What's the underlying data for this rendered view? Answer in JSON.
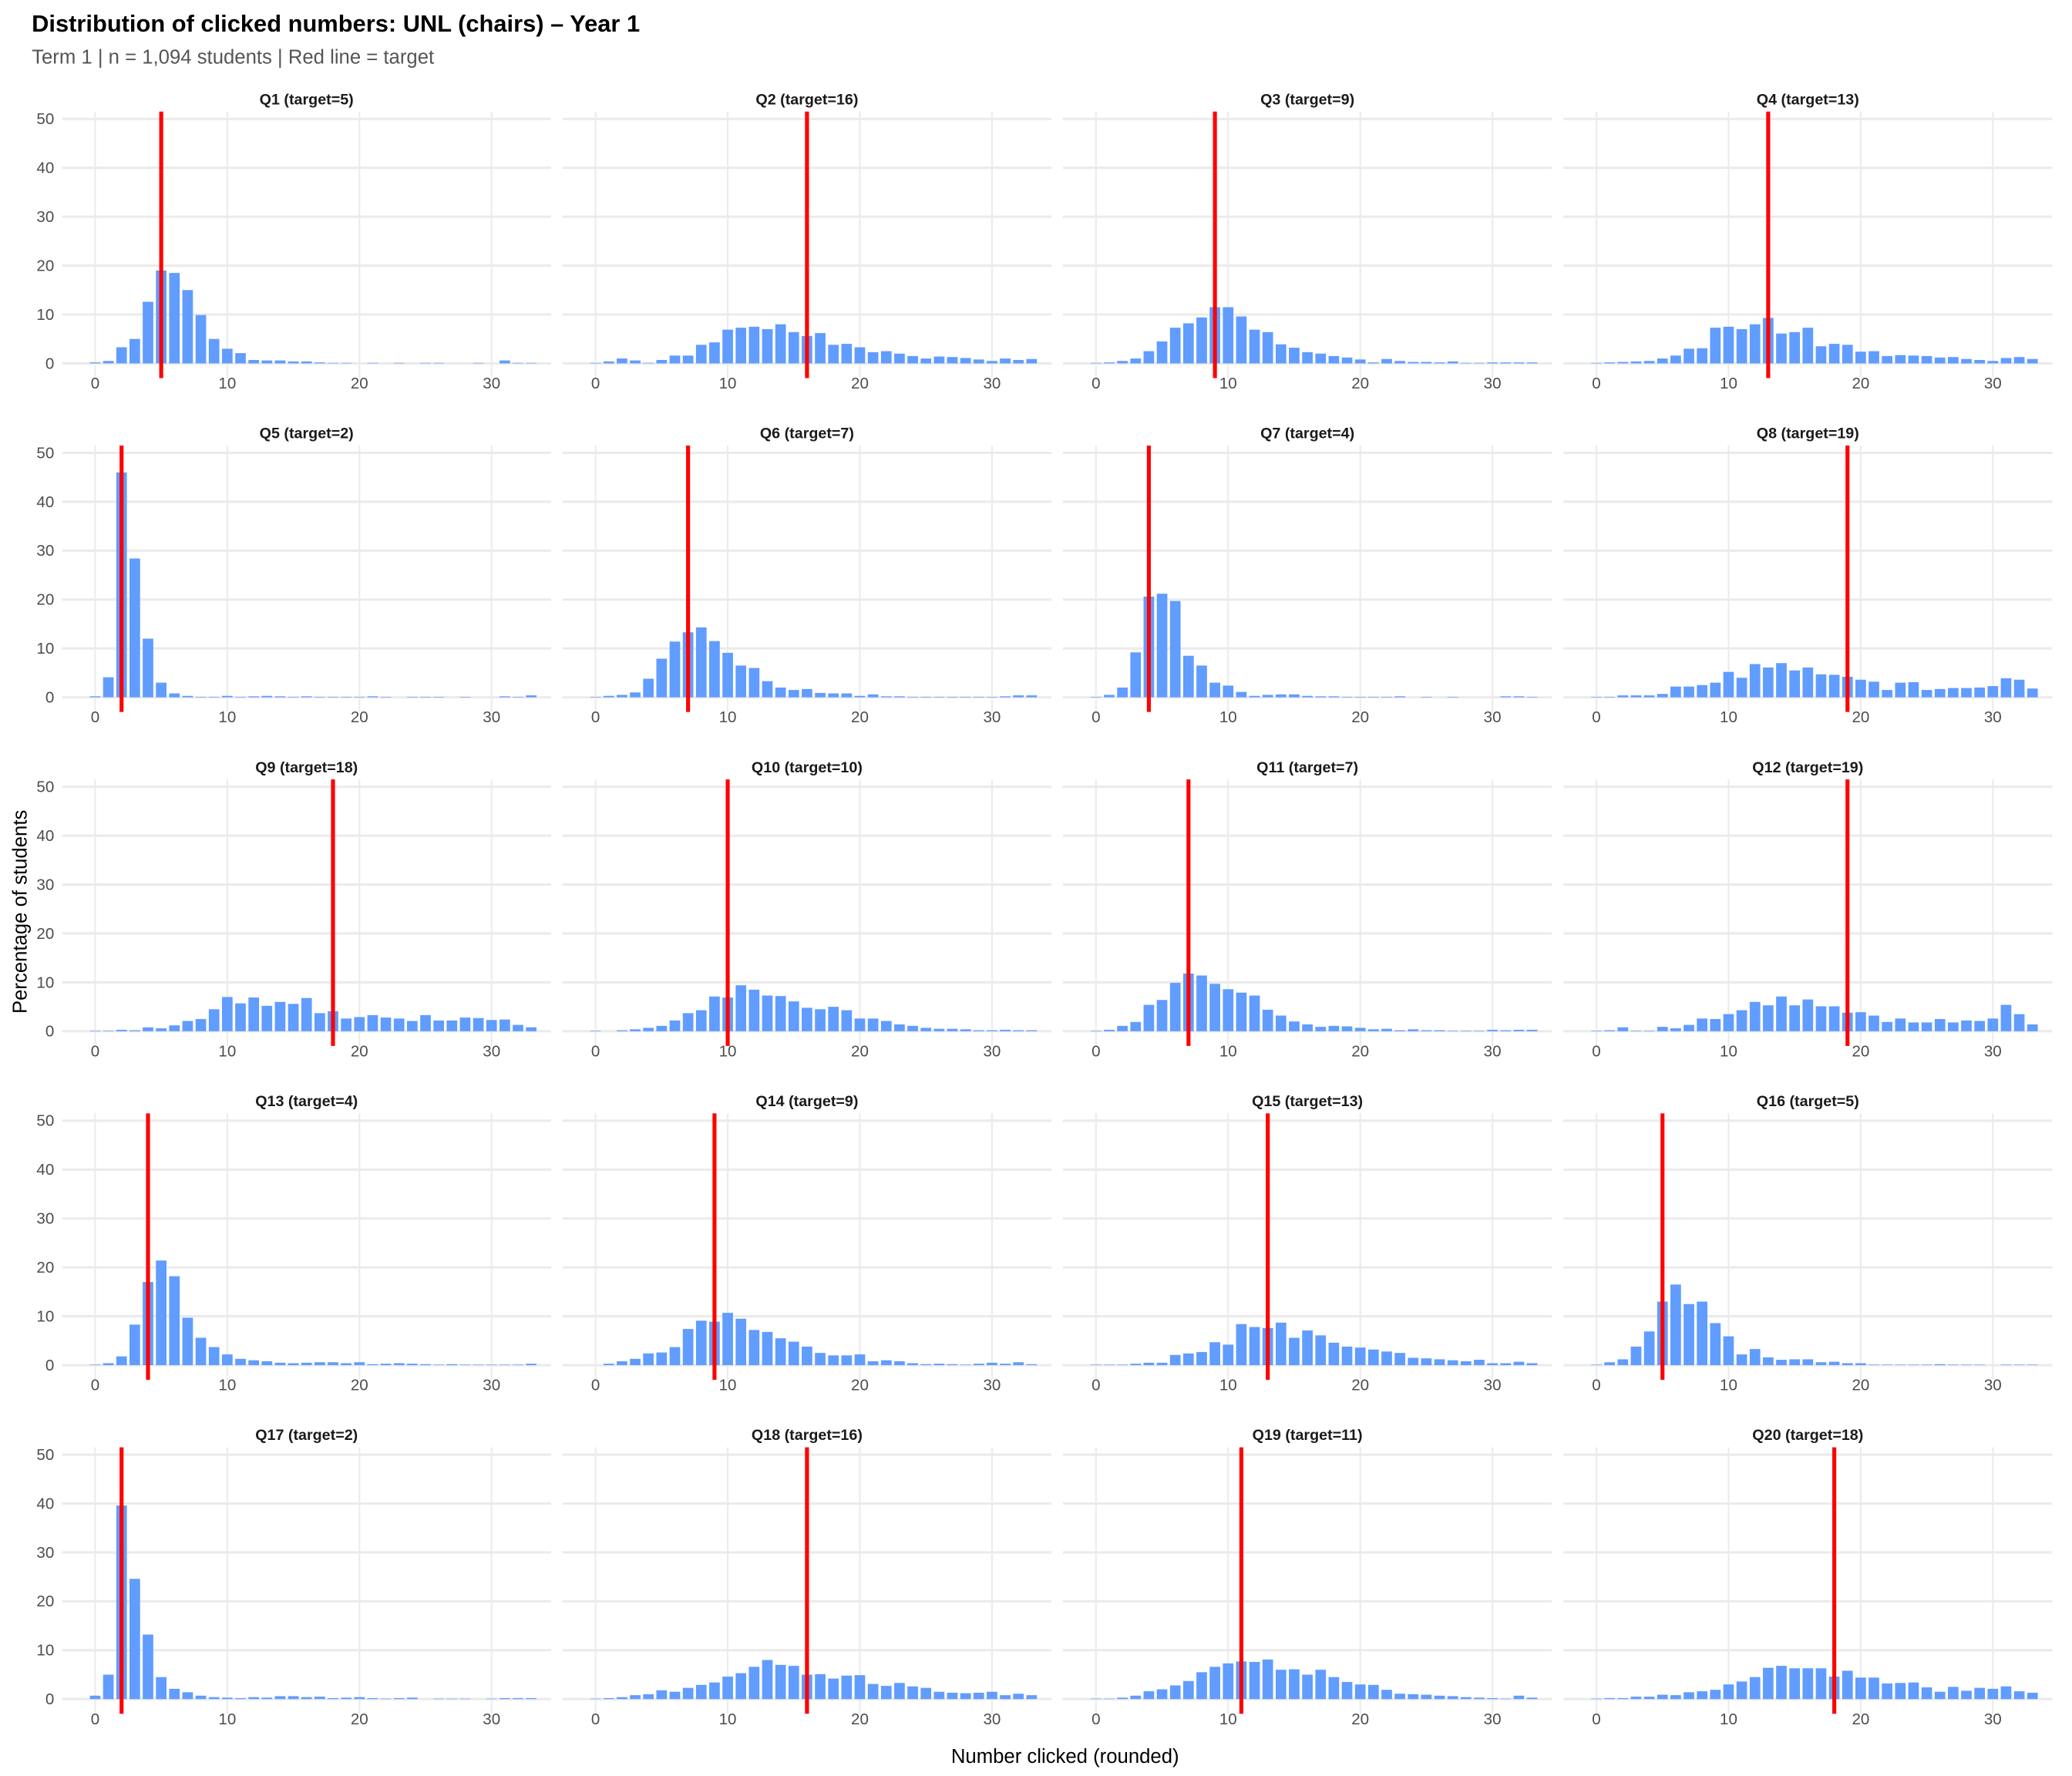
{
  "chart_data": {
    "type": "bar",
    "title": "Distribution of clicked numbers: UNL (chairs) – Year 1",
    "subtitle": "Term 1 | n = 1,094 students | Red line = target",
    "xlabel": "Number clicked (rounded)",
    "ylabel": "Percentage of students",
    "xlim": [
      0,
      33
    ],
    "ylim": [
      0,
      50
    ],
    "xticks": [
      "0",
      "10",
      "20",
      "30"
    ],
    "yticks": [
      "0",
      "10",
      "20",
      "30",
      "40",
      "50"
    ],
    "bar_color": "#619CFF",
    "target_color": "#FF0000",
    "grid": true,
    "panels": [
      {
        "label": "Q1 (target=5)",
        "target": 5,
        "values": [
          0.2,
          0.5,
          3.3,
          5,
          12.6,
          19,
          18.5,
          15,
          9.9,
          5,
          3,
          2.1,
          0.7,
          0.6,
          0.6,
          0.4,
          0.4,
          0.2,
          0.1,
          0.1,
          0,
          0.1,
          0,
          0.1,
          0,
          0.1,
          0.1,
          0,
          0,
          0.1,
          0,
          0.6,
          0.1,
          0.1
        ]
      },
      {
        "label": "Q2 (target=16)",
        "target": 16,
        "values": [
          0.1,
          0.4,
          1,
          0.6,
          0.1,
          0.7,
          1.6,
          1.6,
          3.8,
          4.3,
          6.9,
          7.3,
          7.5,
          7,
          8,
          6.4,
          5.6,
          6.2,
          3.8,
          4,
          3.3,
          2.3,
          2.5,
          2,
          1.5,
          1,
          1.4,
          1.3,
          1.1,
          0.8,
          0.5,
          1,
          0.7,
          0.9
        ]
      },
      {
        "label": "Q3 (target=9)",
        "target": 9,
        "values": [
          0.1,
          0.2,
          0.5,
          1,
          2.5,
          4.5,
          7.3,
          8.2,
          9.4,
          11.5,
          11.5,
          9.6,
          6.9,
          6.4,
          3.9,
          3.2,
          2.3,
          2,
          1.5,
          1.2,
          0.8,
          0.2,
          0.9,
          0.5,
          0.3,
          0.3,
          0.2,
          0.4,
          0.1,
          0.1,
          0.2,
          0.2,
          0.2,
          0.2
        ]
      },
      {
        "label": "Q4 (target=13)",
        "target": 13,
        "values": [
          0.1,
          0.2,
          0.3,
          0.4,
          0.5,
          1,
          1.6,
          3,
          3.1,
          7.3,
          7.5,
          7,
          8,
          9.3,
          6.1,
          6.4,
          7.3,
          3.5,
          4,
          3.8,
          2.4,
          2.5,
          1.5,
          1.7,
          1.6,
          1.5,
          1.2,
          1.3,
          0.9,
          0.7,
          0.5,
          1.1,
          1.3,
          0.9
        ]
      },
      {
        "label": "Q5 (target=2)",
        "target": 2,
        "values": [
          0.2,
          4.1,
          46,
          28.4,
          12,
          3,
          0.8,
          0.3,
          0.1,
          0.1,
          0.3,
          0.1,
          0.2,
          0.3,
          0.2,
          0.1,
          0.2,
          0.1,
          0.1,
          0.1,
          0.1,
          0.2,
          0.1,
          0,
          0.1,
          0.1,
          0.1,
          0,
          0.1,
          0,
          0,
          0.2,
          0.1,
          0.4
        ]
      },
      {
        "label": "Q6 (target=7)",
        "target": 7,
        "values": [
          0.1,
          0.3,
          0.5,
          1,
          3.8,
          7.9,
          11.4,
          13.3,
          14.3,
          11.5,
          9.1,
          6.5,
          6,
          3.3,
          2,
          1.5,
          1.7,
          0.9,
          0.8,
          0.8,
          0.3,
          0.6,
          0.2,
          0.2,
          0.1,
          0.1,
          0.1,
          0.1,
          0.1,
          0.1,
          0.1,
          0.2,
          0.4,
          0.4
        ]
      },
      {
        "label": "Q7 (target=4)",
        "target": 4,
        "values": [
          0.1,
          0.5,
          2,
          9.2,
          20.6,
          21.2,
          19.7,
          8.5,
          6.5,
          3,
          2.4,
          1.1,
          0.3,
          0.5,
          0.6,
          0.6,
          0.3,
          0.2,
          0.2,
          0.1,
          0.1,
          0.1,
          0.1,
          0.2,
          0,
          0.1,
          0,
          0.1,
          0,
          0,
          0,
          0.2,
          0.2,
          0.1
        ]
      },
      {
        "label": "Q8 (target=19)",
        "target": 19,
        "values": [
          0.1,
          0.1,
          0.4,
          0.4,
          0.4,
          0.7,
          2.2,
          2.2,
          2.5,
          3,
          5.2,
          4,
          6.8,
          6.1,
          7,
          5.5,
          6.1,
          4.7,
          4.6,
          4.2,
          3.6,
          3.2,
          1.5,
          3,
          3.1,
          1.5,
          1.7,
          1.9,
          1.9,
          2,
          2.3,
          3.9,
          3.6,
          1.8
        ]
      },
      {
        "label": "Q9 (target=18)",
        "target": 18,
        "values": [
          0.1,
          0.1,
          0.3,
          0.2,
          0.8,
          0.6,
          1.2,
          2.1,
          2.5,
          4.5,
          7,
          5.7,
          6.9,
          5.2,
          6,
          5.6,
          6.8,
          3.7,
          4.1,
          2.6,
          2.9,
          3.3,
          2.8,
          2.6,
          2.1,
          3.3,
          2.2,
          2.2,
          2.8,
          2.7,
          2.3,
          2.4,
          1.3,
          0.8
        ]
      },
      {
        "label": "Q10 (target=10)",
        "target": 10,
        "values": [
          0.1,
          0,
          0.2,
          0.4,
          0.7,
          1.1,
          2.2,
          3.7,
          4.3,
          7.1,
          6.9,
          9.4,
          8.5,
          7.3,
          7.2,
          6.1,
          4.8,
          4.5,
          5,
          4.3,
          2.6,
          2.6,
          2.1,
          1.4,
          1.1,
          0.7,
          0.5,
          0.5,
          0.4,
          0.2,
          0.2,
          0.3,
          0.2,
          0.2
        ]
      },
      {
        "label": "Q11 (target=7)",
        "target": 7,
        "values": [
          0.1,
          0.3,
          1.1,
          1.9,
          5.4,
          6.4,
          9.9,
          11.8,
          11.4,
          9.7,
          8.6,
          7.9,
          7.3,
          4.4,
          3.2,
          2,
          1.4,
          0.9,
          1.1,
          1,
          0.7,
          0.4,
          0.5,
          0.2,
          0.4,
          0.2,
          0.2,
          0.1,
          0.1,
          0.1,
          0.3,
          0.2,
          0.3,
          0.3
        ]
      },
      {
        "label": "Q12 (target=19)",
        "target": 19,
        "values": [
          0.1,
          0.2,
          0.8,
          0.1,
          0.1,
          0.9,
          0.6,
          1.3,
          2.6,
          2.5,
          3.5,
          4.3,
          6,
          5.3,
          7.1,
          5.3,
          6.5,
          5.1,
          5.1,
          3.8,
          3.9,
          3.2,
          1.9,
          2.6,
          1.8,
          1.8,
          2.5,
          1.8,
          2.2,
          2.1,
          2.6,
          5.4,
          3.5,
          1.4
        ]
      },
      {
        "label": "Q13 (target=4)",
        "target": 4,
        "values": [
          0.1,
          0.4,
          1.8,
          8.3,
          17,
          21.4,
          18.2,
          9.7,
          5.6,
          3.7,
          2.2,
          1.3,
          1,
          0.8,
          0.5,
          0.4,
          0.5,
          0.6,
          0.6,
          0.4,
          0.6,
          0.2,
          0.3,
          0.4,
          0.3,
          0.2,
          0.1,
          0.2,
          0.1,
          0.1,
          0.1,
          0.1,
          0.1,
          0.3
        ]
      },
      {
        "label": "Q14 (target=9)",
        "target": 9,
        "values": [
          0,
          0.3,
          0.8,
          1.3,
          2.4,
          2.6,
          3.7,
          7.4,
          9.1,
          8.9,
          10.7,
          9.5,
          7.2,
          6.8,
          5.5,
          4.8,
          3.8,
          2.5,
          2,
          2,
          2.2,
          0.8,
          1,
          0.8,
          0.4,
          0.2,
          0.3,
          0.2,
          0.1,
          0.3,
          0.5,
          0.3,
          0.6,
          0.2
        ]
      },
      {
        "label": "Q15 (target=13)",
        "target": 13,
        "values": [
          0.1,
          0.1,
          0.1,
          0.3,
          0.5,
          0.5,
          2.1,
          2.4,
          2.7,
          4.7,
          4.2,
          8.4,
          7.8,
          7.6,
          8.7,
          5.6,
          7.1,
          6.1,
          4.6,
          3.8,
          3.6,
          3.2,
          2.8,
          2.5,
          1.5,
          1.4,
          1.2,
          1,
          0.8,
          1.1,
          0.4,
          0.4,
          0.7,
          0.4
        ]
      },
      {
        "label": "Q16 (target=5)",
        "target": 5,
        "values": [
          0.1,
          0.6,
          1.2,
          3.8,
          6.9,
          13,
          16.5,
          12.5,
          13,
          8.6,
          5.9,
          2.2,
          3.3,
          1.6,
          1.1,
          1.2,
          1.2,
          0.6,
          0.7,
          0.4,
          0.4,
          0.1,
          0.1,
          0.1,
          0.1,
          0.1,
          0.2,
          0.1,
          0.1,
          0.1,
          0,
          0.1,
          0.1,
          0.1
        ]
      },
      {
        "label": "Q17 (target=2)",
        "target": 2,
        "values": [
          0.7,
          5,
          39.6,
          24.6,
          13.2,
          4.5,
          2.1,
          1.4,
          0.7,
          0.4,
          0.3,
          0.2,
          0.4,
          0.3,
          0.6,
          0.6,
          0.4,
          0.5,
          0.2,
          0.3,
          0.4,
          0.2,
          0.1,
          0.2,
          0.3,
          0,
          0.1,
          0.1,
          0.1,
          0,
          0.1,
          0.2,
          0.2,
          0.2
        ]
      },
      {
        "label": "Q18 (target=16)",
        "target": 16,
        "values": [
          0.1,
          0.2,
          0.4,
          0.8,
          1,
          1.8,
          1.5,
          2.3,
          2.9,
          3.4,
          4.6,
          5.3,
          6.6,
          8,
          7,
          6.8,
          5,
          5.1,
          4.2,
          4.8,
          4.9,
          3.1,
          2.7,
          3.3,
          2.6,
          2.3,
          1.5,
          1.3,
          1.2,
          1.3,
          1.5,
          0.8,
          1.1,
          0.8
        ]
      },
      {
        "label": "Q19 (target=11)",
        "target": 11,
        "values": [
          0.1,
          0.1,
          0.3,
          0.7,
          1.6,
          2,
          2.8,
          3.7,
          5.5,
          6.6,
          7.3,
          7.7,
          7.6,
          8.1,
          6,
          6.1,
          5,
          6,
          4.5,
          3.5,
          3,
          2.9,
          1.9,
          1.1,
          1,
          0.9,
          0.7,
          0.6,
          0.4,
          0.3,
          0.2,
          0.1,
          0.7,
          0.3
        ]
      },
      {
        "label": "Q20 (target=18)",
        "target": 18,
        "values": [
          0.1,
          0.2,
          0.2,
          0.5,
          0.5,
          0.9,
          0.8,
          1.4,
          1.6,
          1.9,
          3,
          3.6,
          4.5,
          6.4,
          6.8,
          6.3,
          6.3,
          6.3,
          4.6,
          5.8,
          4.4,
          4.4,
          3.2,
          3.3,
          3.4,
          2.4,
          1.5,
          2.5,
          1.7,
          2.3,
          2.1,
          2.6,
          1.6,
          1.3
        ]
      }
    ]
  }
}
